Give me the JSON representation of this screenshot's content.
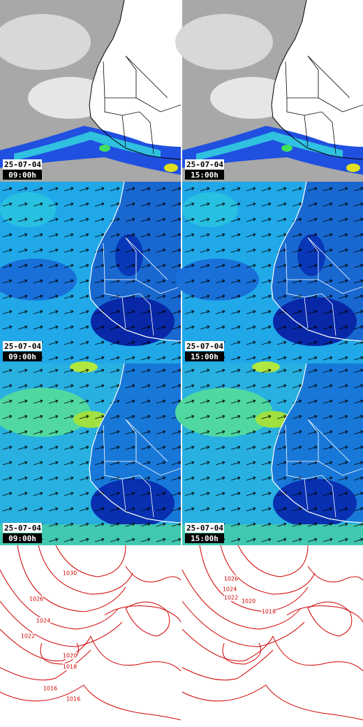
{
  "satellite": [
    {
      "date": "25-07-04",
      "time": "09:00h"
    },
    {
      "date": "25-07-04",
      "time": "15:00h"
    }
  ],
  "wind_upper": [
    {
      "date": "25-07-04",
      "time": "09:00h"
    },
    {
      "date": "25-07-04",
      "time": "15:00h"
    }
  ],
  "wind_lower": [
    {
      "date": "25-07-04",
      "time": "09:00h"
    },
    {
      "date": "25-07-04",
      "time": "15:00h"
    }
  ],
  "pressure": [
    {
      "isobars": [
        1030,
        1026,
        1024,
        1022,
        1020,
        1018,
        1016,
        1016
      ]
    },
    {
      "isobars": [
        1026,
        1024,
        1022,
        1020,
        1018
      ]
    }
  ]
}
